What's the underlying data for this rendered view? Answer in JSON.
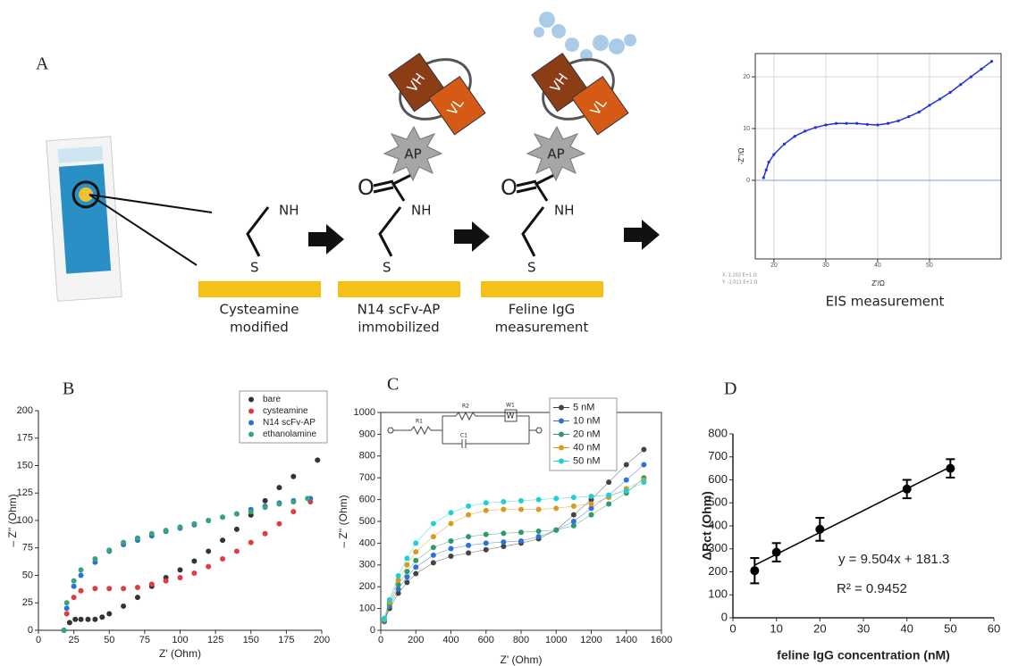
{
  "panel_labels": {
    "a": "A",
    "b": "B",
    "c": "C",
    "d": "D"
  },
  "diagram": {
    "amine": "NH",
    "sulfur": "S",
    "oxygen": "O",
    "heavy_chain": "VH",
    "light_chain": "VL",
    "enzyme": "AP",
    "steps": [
      [
        "Cysteamine",
        "modified"
      ],
      [
        "N14 scFv-AP",
        "immobilized"
      ],
      [
        "Feline IgG",
        "measurement"
      ]
    ],
    "eis_caption": "EIS measurement"
  },
  "chart_data": [
    {
      "type": "line",
      "x_label": "Z'/Ω",
      "y_label": "-Z''/Ω",
      "color": "#2233dd",
      "cursor_text": [
        "X: 1.202 E+1 Ω",
        "Y: -2.011 E+1 Ω"
      ],
      "x": [
        18,
        18.5,
        19,
        20,
        22,
        24,
        26,
        28,
        30,
        32,
        34,
        36,
        38,
        40,
        42,
        44,
        46,
        48,
        50,
        52,
        54,
        56,
        58,
        60,
        62
      ],
      "values": [
        0.5,
        2,
        3.5,
        5,
        7,
        8.5,
        9.5,
        10.2,
        10.7,
        11,
        11,
        11,
        10.8,
        10.7,
        11,
        11.5,
        12.3,
        13.2,
        14.5,
        15.7,
        17,
        18.5,
        20,
        21.5,
        23
      ],
      "xlim": [
        16.4,
        63.8
      ],
      "xticks": [
        20,
        30,
        40,
        50
      ],
      "ylim": [
        -15.2,
        24.5
      ],
      "yticks": [
        0,
        10,
        20
      ],
      "grid": true
    },
    {
      "type": "scatter",
      "x_label": "Z' (Ohm)",
      "y_label": "– Z'' (Ohm)",
      "legend": "top-right",
      "xlim": [
        0,
        200
      ],
      "xticks": [
        0,
        25,
        50,
        75,
        100,
        125,
        150,
        175,
        200
      ],
      "ylim": [
        0,
        200
      ],
      "yticks": [
        0,
        25,
        50,
        75,
        100,
        125,
        150,
        175,
        200
      ],
      "series": [
        {
          "name": "bare",
          "color": "#333333",
          "x": [
            18,
            22,
            26,
            30,
            35,
            40,
            45,
            50,
            60,
            70,
            80,
            90,
            100,
            110,
            120,
            130,
            140,
            150,
            160,
            170,
            180,
            197
          ],
          "values": [
            0,
            7,
            10,
            10,
            10,
            10,
            12,
            15,
            22,
            30,
            40,
            48,
            55,
            63,
            72,
            82,
            92,
            105,
            118,
            130,
            140,
            155
          ]
        },
        {
          "name": "cysteamine",
          "color": "#e23b3b",
          "x": [
            18,
            20,
            25,
            30,
            40,
            50,
            60,
            70,
            80,
            90,
            100,
            110,
            120,
            130,
            140,
            150,
            160,
            170,
            180,
            192
          ],
          "values": [
            0,
            15,
            30,
            36,
            38,
            38,
            38,
            39,
            42,
            45,
            48,
            52,
            58,
            65,
            72,
            80,
            88,
            97,
            108,
            117
          ]
        },
        {
          "name": "N14 scFv-AP",
          "color": "#2f6fd6",
          "x": [
            18,
            20,
            25,
            30,
            40,
            50,
            60,
            70,
            80,
            90,
            100,
            110,
            120,
            130,
            140,
            150,
            160,
            170,
            180,
            192
          ],
          "values": [
            0,
            20,
            40,
            50,
            62,
            72,
            78,
            82,
            86,
            90,
            93,
            96,
            100,
            103,
            106,
            110,
            113,
            116,
            118,
            120
          ]
        },
        {
          "name": "ethanolamine",
          "color": "#3aa37a",
          "x": [
            18,
            20,
            25,
            30,
            40,
            50,
            60,
            70,
            80,
            90,
            100,
            110,
            120,
            130,
            140,
            150,
            160,
            170,
            180,
            190
          ],
          "values": [
            0,
            25,
            45,
            55,
            65,
            73,
            80,
            84,
            88,
            91,
            94,
            97,
            100,
            103,
            106,
            108,
            112,
            115,
            117,
            120
          ]
        }
      ]
    },
    {
      "type": "scatter",
      "connect": true,
      "x_label": "Z' (Ohm)",
      "y_label": "– Z'' (Ohm)",
      "legend": "top-right",
      "circuit_labels": [
        "R1",
        "R2",
        "W1",
        "C1",
        "W"
      ],
      "xlim": [
        0,
        1600
      ],
      "xticks": [
        0,
        200,
        400,
        600,
        800,
        1000,
        1200,
        1400,
        1600
      ],
      "ylim": [
        0,
        1000
      ],
      "yticks": [
        0,
        100,
        200,
        300,
        400,
        500,
        600,
        700,
        800,
        900,
        1000
      ],
      "x": [
        20,
        50,
        100,
        150,
        200,
        300,
        400,
        500,
        600,
        700,
        800,
        900,
        1000,
        1100,
        1200,
        1300,
        1400,
        1500
      ],
      "series": [
        {
          "name": "5 nM",
          "color": "#444444",
          "values": [
            40,
            100,
            170,
            220,
            260,
            310,
            340,
            355,
            370,
            385,
            400,
            420,
            460,
            530,
            600,
            680,
            760,
            830
          ]
        },
        {
          "name": "10 nM",
          "color": "#2a72d6",
          "values": [
            40,
            110,
            190,
            245,
            290,
            345,
            375,
            390,
            400,
            405,
            410,
            430,
            460,
            500,
            560,
            620,
            690,
            760
          ]
        },
        {
          "name": "20 nM",
          "color": "#2e9a6a",
          "values": [
            45,
            120,
            210,
            270,
            320,
            380,
            410,
            430,
            440,
            445,
            450,
            455,
            460,
            480,
            530,
            580,
            630,
            700
          ]
        },
        {
          "name": "40 nM",
          "color": "#d89a20",
          "values": [
            50,
            130,
            230,
            300,
            360,
            430,
            490,
            530,
            550,
            555,
            555,
            555,
            560,
            570,
            580,
            610,
            650,
            690
          ]
        },
        {
          "name": "50 nM",
          "color": "#20d0d0",
          "values": [
            55,
            140,
            250,
            330,
            400,
            490,
            540,
            570,
            585,
            590,
            595,
            600,
            605,
            610,
            615,
            620,
            640,
            680
          ]
        }
      ]
    },
    {
      "type": "errorbar",
      "x_label": "feline IgG concentration (nM)",
      "y_label": "ΔRct (Ohm)",
      "color": "#000000",
      "x": [
        5,
        10,
        20,
        40,
        50
      ],
      "values": [
        205,
        285,
        385,
        560,
        650
      ],
      "errors": [
        55,
        40,
        50,
        40,
        40
      ],
      "trendline": {
        "slope": 9.504,
        "intercept": 181.3,
        "label": "y = 9.504x + 181.3"
      },
      "r2": {
        "value": 0.9452,
        "label": "R² = 0.9452"
      },
      "xlim": [
        0,
        60
      ],
      "xticks": [
        0,
        10,
        20,
        30,
        40,
        50,
        60
      ],
      "ylim": [
        0,
        800
      ],
      "yticks": [
        0,
        100,
        200,
        300,
        400,
        500,
        600,
        700,
        800
      ]
    }
  ]
}
